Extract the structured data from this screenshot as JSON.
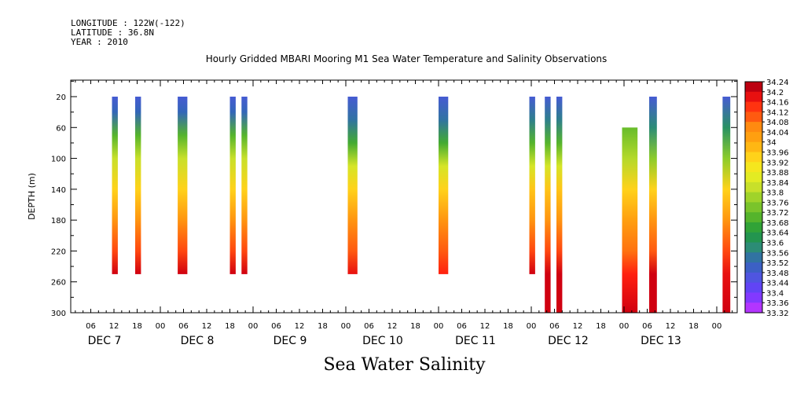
{
  "header": {
    "longitude": "LONGITUDE : 122W(-122)",
    "latitude": "LATITUDE : 36.8N",
    "year": "YEAR : 2010"
  },
  "chart_data": {
    "type": "heatmap",
    "title": "Hourly Gridded MBARI Mooring M1 Sea Water Temperature and Salinity Observations",
    "xlabel": "Sea Water Salinity",
    "ylabel": "DEPTH (m)",
    "ylim": [
      0,
      300
    ],
    "y_ticks": [
      20,
      60,
      100,
      140,
      180,
      220,
      260,
      300
    ],
    "x_unit": "hours since DEC 7 00:00",
    "xlim": [
      0,
      168
    ],
    "x_hour_ticks": [
      "06",
      "12",
      "18",
      "00",
      "06",
      "12",
      "18",
      "00",
      "06",
      "12",
      "18",
      "00",
      "06",
      "12",
      "18",
      "00",
      "06",
      "12",
      "18",
      "00",
      "06",
      "12",
      "18",
      "00",
      "06",
      "12",
      "18",
      "00"
    ],
    "x_day_labels": [
      "DEC  7",
      "DEC  8",
      "DEC  9",
      "DEC 10",
      "DEC 11",
      "DEC 12",
      "DEC 13"
    ],
    "colorbar": {
      "min": 33.32,
      "max": 34.24,
      "step": 0.04,
      "labels": [
        "34.24",
        "34.2",
        "34.16",
        "34.12",
        "34.08",
        "34.04",
        "34",
        "33.96",
        "33.92",
        "33.88",
        "33.84",
        "33.8",
        "33.76",
        "33.72",
        "33.68",
        "33.64",
        "33.6",
        "33.56",
        "33.52",
        "33.48",
        "33.44",
        "33.4",
        "33.36",
        "33.32"
      ]
    },
    "columns": [
      {
        "x0": 11.5,
        "x1": 13,
        "depth_top": 20,
        "depth_bottom": 250,
        "profile": [
          [
            20,
            33.48
          ],
          [
            40,
            33.52
          ],
          [
            70,
            33.7
          ],
          [
            100,
            33.82
          ],
          [
            140,
            33.94
          ],
          [
            180,
            34.04
          ],
          [
            220,
            34.12
          ],
          [
            250,
            34.2
          ]
        ]
      },
      {
        "x0": 17.5,
        "x1": 19,
        "depth_top": 20,
        "depth_bottom": 250,
        "profile": [
          [
            20,
            33.48
          ],
          [
            40,
            33.52
          ],
          [
            70,
            33.7
          ],
          [
            100,
            33.82
          ],
          [
            140,
            33.94
          ],
          [
            180,
            34.04
          ],
          [
            220,
            34.12
          ],
          [
            250,
            34.2
          ]
        ]
      },
      {
        "x0": 28.5,
        "x1": 31,
        "depth_top": 20,
        "depth_bottom": 250,
        "profile": [
          [
            20,
            33.48
          ],
          [
            40,
            33.52
          ],
          [
            70,
            33.7
          ],
          [
            100,
            33.82
          ],
          [
            140,
            33.94
          ],
          [
            180,
            34.04
          ],
          [
            220,
            34.12
          ],
          [
            250,
            34.2
          ]
        ]
      },
      {
        "x0": 42,
        "x1": 43.5,
        "depth_top": 20,
        "depth_bottom": 250,
        "profile": [
          [
            20,
            33.48
          ],
          [
            40,
            33.52
          ],
          [
            70,
            33.7
          ],
          [
            100,
            33.82
          ],
          [
            140,
            33.94
          ],
          [
            180,
            34.04
          ],
          [
            220,
            34.12
          ],
          [
            250,
            34.2
          ]
        ]
      },
      {
        "x0": 45,
        "x1": 46.5,
        "depth_top": 20,
        "depth_bottom": 250,
        "profile": [
          [
            20,
            33.48
          ],
          [
            40,
            33.52
          ],
          [
            70,
            33.7
          ],
          [
            100,
            33.82
          ],
          [
            140,
            33.94
          ],
          [
            180,
            34.04
          ],
          [
            220,
            34.12
          ],
          [
            250,
            34.2
          ]
        ]
      },
      {
        "x0": 72.5,
        "x1": 75,
        "depth_top": 20,
        "depth_bottom": 250,
        "profile": [
          [
            20,
            33.48
          ],
          [
            50,
            33.54
          ],
          [
            80,
            33.68
          ],
          [
            110,
            33.84
          ],
          [
            140,
            33.94
          ],
          [
            180,
            34.04
          ],
          [
            220,
            34.1
          ],
          [
            250,
            34.18
          ]
        ]
      },
      {
        "x0": 96,
        "x1": 98.5,
        "depth_top": 20,
        "depth_bottom": 250,
        "profile": [
          [
            20,
            33.48
          ],
          [
            50,
            33.54
          ],
          [
            80,
            33.68
          ],
          [
            110,
            33.84
          ],
          [
            140,
            33.94
          ],
          [
            180,
            34.04
          ],
          [
            220,
            34.1
          ],
          [
            250,
            34.16
          ]
        ]
      },
      {
        "x0": 119.5,
        "x1": 121,
        "depth_top": 20,
        "depth_bottom": 250,
        "profile": [
          [
            20,
            33.48
          ],
          [
            50,
            33.56
          ],
          [
            80,
            33.7
          ],
          [
            110,
            33.84
          ],
          [
            140,
            33.96
          ],
          [
            180,
            34.04
          ],
          [
            220,
            34.12
          ],
          [
            250,
            34.2
          ]
        ]
      },
      {
        "x0": 123.5,
        "x1": 125,
        "depth_top": 20,
        "depth_bottom": 300,
        "profile": [
          [
            20,
            33.48
          ],
          [
            50,
            33.56
          ],
          [
            80,
            33.7
          ],
          [
            110,
            33.84
          ],
          [
            140,
            33.96
          ],
          [
            180,
            34.04
          ],
          [
            220,
            34.12
          ],
          [
            250,
            34.2
          ],
          [
            300,
            34.2
          ]
        ]
      },
      {
        "x0": 126.5,
        "x1": 128,
        "depth_top": 20,
        "depth_bottom": 300,
        "profile": [
          [
            20,
            33.48
          ],
          [
            50,
            33.56
          ],
          [
            80,
            33.7
          ],
          [
            110,
            33.84
          ],
          [
            140,
            33.96
          ],
          [
            180,
            34.04
          ],
          [
            220,
            34.12
          ],
          [
            250,
            34.2
          ],
          [
            300,
            34.2
          ]
        ]
      },
      {
        "x0": 143.5,
        "x1": 147.5,
        "depth_top": 60,
        "depth_bottom": 300,
        "profile": [
          [
            60,
            33.72
          ],
          [
            100,
            33.8
          ],
          [
            140,
            33.94
          ],
          [
            180,
            34.02
          ],
          [
            220,
            34.08
          ],
          [
            250,
            34.16
          ],
          [
            300,
            34.2
          ]
        ]
      },
      {
        "x0": 150.5,
        "x1": 152.5,
        "depth_top": 20,
        "depth_bottom": 300,
        "profile": [
          [
            20,
            33.48
          ],
          [
            60,
            33.58
          ],
          [
            100,
            33.76
          ],
          [
            140,
            33.94
          ],
          [
            180,
            34.04
          ],
          [
            220,
            34.1
          ],
          [
            250,
            34.2
          ],
          [
            300,
            34.2
          ]
        ]
      },
      {
        "x0": 169.5,
        "x1": 171.5,
        "depth_top": 20,
        "depth_bottom": 300,
        "profile": [
          [
            20,
            33.48
          ],
          [
            60,
            33.6
          ],
          [
            100,
            33.76
          ],
          [
            140,
            33.94
          ],
          [
            180,
            34.04
          ],
          [
            220,
            34.12
          ],
          [
            250,
            34.18
          ],
          [
            300,
            34.2
          ]
        ]
      }
    ]
  }
}
